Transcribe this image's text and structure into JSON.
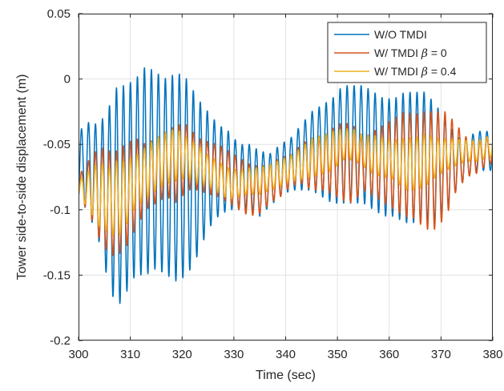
{
  "chart_data": {
    "type": "line",
    "title": "",
    "xlabel": "Time (sec)",
    "ylabel": "Tower side-to-side displacement (m)",
    "xlim": [
      300,
      380
    ],
    "ylim": [
      -0.2,
      0.05
    ],
    "xticks": [
      300,
      310,
      320,
      330,
      340,
      350,
      360,
      370,
      380
    ],
    "xtick_labels": [
      "300",
      "310",
      "320",
      "330",
      "340",
      "350",
      "360",
      "370",
      "380"
    ],
    "yticks": [
      -0.2,
      -0.15,
      -0.1,
      -0.05,
      0,
      0.05
    ],
    "ytick_labels": [
      "-0.2",
      "-0.15",
      "-0.1",
      "-0.05",
      "0",
      "0.05"
    ],
    "grid": true,
    "legend_position": "top-right",
    "oscillation_period_sec": 1.35,
    "series": [
      {
        "name": "W/O TMDI",
        "legend": {
          "prefix": "W/O TMDI",
          "symbol": "",
          "suffix": ""
        },
        "color": "#0072BD",
        "envelope_t": [
          300,
          302,
          304,
          306,
          307.5,
          309,
          311,
          313,
          315,
          317,
          319,
          321,
          323,
          325,
          327,
          329,
          331,
          333,
          335,
          337,
          339,
          341,
          343,
          345,
          347,
          349,
          351,
          353,
          355,
          357,
          359,
          361,
          363,
          365,
          367,
          369,
          371,
          373,
          375,
          377,
          379,
          380
        ],
        "envelope_center": [
          -0.065,
          -0.068,
          -0.08,
          -0.09,
          -0.09,
          -0.085,
          -0.075,
          -0.07,
          -0.07,
          -0.075,
          -0.075,
          -0.075,
          -0.075,
          -0.07,
          -0.07,
          -0.07,
          -0.075,
          -0.075,
          -0.08,
          -0.077,
          -0.07,
          -0.065,
          -0.06,
          -0.055,
          -0.055,
          -0.055,
          -0.05,
          -0.05,
          -0.05,
          -0.055,
          -0.06,
          -0.06,
          -0.06,
          -0.06,
          -0.06,
          -0.065,
          -0.065,
          -0.065,
          -0.06,
          -0.055,
          -0.055,
          -0.055
        ],
        "envelope_amplitude": [
          0.025,
          0.035,
          0.045,
          0.07,
          0.085,
          0.08,
          0.075,
          0.08,
          0.075,
          0.075,
          0.08,
          0.075,
          0.06,
          0.045,
          0.035,
          0.03,
          0.025,
          0.025,
          0.025,
          0.02,
          0.02,
          0.02,
          0.025,
          0.03,
          0.035,
          0.04,
          0.045,
          0.045,
          0.045,
          0.045,
          0.045,
          0.045,
          0.05,
          0.05,
          0.05,
          0.045,
          0.035,
          0.02,
          0.015,
          0.015,
          0.015,
          0.015
        ]
      },
      {
        "name": "W/ TMDI β = 0",
        "legend": {
          "prefix": "W/ TMDI ",
          "symbol": "β",
          "suffix": " = 0"
        },
        "color": "#D95319",
        "envelope_t": [
          300,
          302,
          304,
          306,
          307.5,
          309,
          311,
          313,
          315,
          317,
          319,
          321,
          323,
          325,
          327,
          329,
          331,
          333,
          335,
          337,
          339,
          341,
          343,
          345,
          347,
          349,
          351,
          353,
          355,
          357,
          359,
          361,
          363,
          365,
          367,
          369,
          371,
          373,
          375,
          377,
          379,
          380
        ],
        "envelope_center": [
          -0.082,
          -0.082,
          -0.087,
          -0.095,
          -0.095,
          -0.09,
          -0.08,
          -0.075,
          -0.07,
          -0.065,
          -0.065,
          -0.06,
          -0.065,
          -0.068,
          -0.07,
          -0.075,
          -0.08,
          -0.085,
          -0.085,
          -0.08,
          -0.075,
          -0.07,
          -0.065,
          -0.065,
          -0.065,
          -0.063,
          -0.063,
          -0.065,
          -0.065,
          -0.065,
          -0.065,
          -0.065,
          -0.065,
          -0.067,
          -0.07,
          -0.07,
          -0.065,
          -0.06,
          -0.06,
          -0.06,
          -0.055,
          -0.055
        ],
        "envelope_amplitude": [
          0.008,
          0.02,
          0.035,
          0.04,
          0.04,
          0.04,
          0.035,
          0.025,
          0.025,
          0.025,
          0.03,
          0.025,
          0.02,
          0.02,
          0.02,
          0.02,
          0.02,
          0.02,
          0.018,
          0.015,
          0.015,
          0.012,
          0.015,
          0.02,
          0.02,
          0.025,
          0.03,
          0.03,
          0.02,
          0.025,
          0.03,
          0.035,
          0.04,
          0.04,
          0.045,
          0.045,
          0.04,
          0.025,
          0.015,
          0.012,
          0.01,
          0.01
        ]
      },
      {
        "name": "W/ TMDI β = 0.4",
        "legend": {
          "prefix": "W/ TMDI ",
          "symbol": "β",
          "suffix": " = 0.4"
        },
        "color": "#EDB120",
        "envelope_t": [
          300,
          302,
          304,
          306,
          307.5,
          309,
          311,
          313,
          315,
          317,
          319,
          321,
          323,
          325,
          327,
          329,
          331,
          333,
          335,
          337,
          339,
          341,
          343,
          345,
          347,
          349,
          351,
          353,
          355,
          357,
          359,
          361,
          363,
          365,
          367,
          369,
          371,
          373,
          375,
          377,
          379,
          380
        ],
        "envelope_center": [
          -0.083,
          -0.085,
          -0.088,
          -0.093,
          -0.092,
          -0.088,
          -0.078,
          -0.072,
          -0.065,
          -0.06,
          -0.058,
          -0.06,
          -0.065,
          -0.07,
          -0.075,
          -0.08,
          -0.08,
          -0.078,
          -0.078,
          -0.075,
          -0.072,
          -0.068,
          -0.065,
          -0.06,
          -0.058,
          -0.055,
          -0.05,
          -0.05,
          -0.055,
          -0.058,
          -0.06,
          -0.062,
          -0.065,
          -0.065,
          -0.062,
          -0.06,
          -0.058,
          -0.056,
          -0.055,
          -0.055,
          -0.052,
          -0.052
        ],
        "envelope_amplitude": [
          0.005,
          0.015,
          0.025,
          0.025,
          0.03,
          0.025,
          0.02,
          0.02,
          0.02,
          0.02,
          0.02,
          0.015,
          0.015,
          0.012,
          0.012,
          0.012,
          0.01,
          0.01,
          0.01,
          0.01,
          0.01,
          0.01,
          0.012,
          0.015,
          0.015,
          0.015,
          0.012,
          0.012,
          0.012,
          0.015,
          0.015,
          0.015,
          0.02,
          0.02,
          0.02,
          0.015,
          0.012,
          0.01,
          0.008,
          0.008,
          0.008,
          0.008
        ]
      }
    ]
  }
}
